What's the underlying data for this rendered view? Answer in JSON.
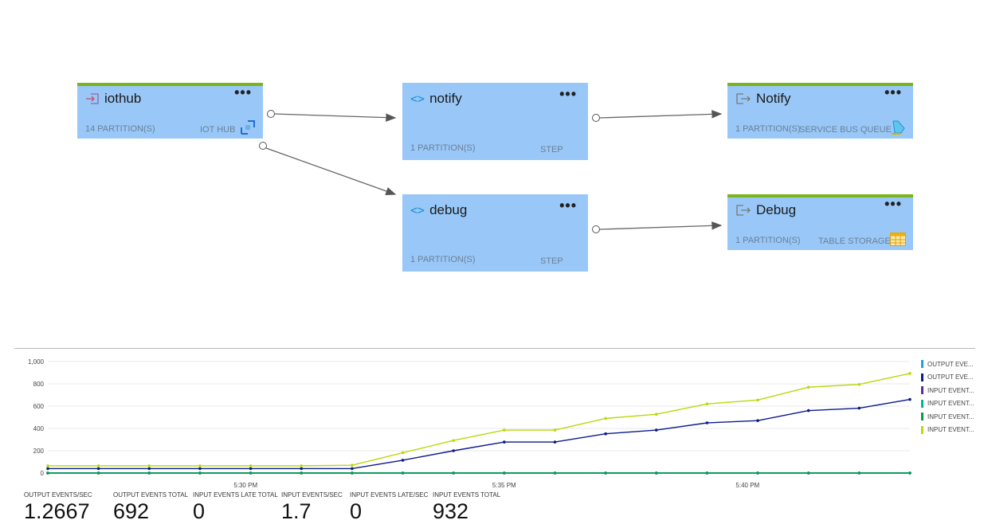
{
  "nodes": {
    "iothub": {
      "title": "iothub",
      "partitions": "14 PARTITION(S)",
      "kind": "IOT HUB",
      "more": "•••"
    },
    "notify_step": {
      "title": "notify",
      "partitions": "1 PARTITION(S)",
      "kind": "STEP",
      "more": "•••"
    },
    "debug_step": {
      "title": "debug",
      "partitions": "1 PARTITION(S)",
      "kind": "STEP",
      "more": "•••"
    },
    "notify_out": {
      "title": "Notify",
      "partitions": "1 PARTITION(S)",
      "kind": "SERVICE BUS QUEUE",
      "more": "•••"
    },
    "debug_out": {
      "title": "Debug",
      "partitions": "1 PARTITION(S)",
      "kind": "TABLE STORAGE",
      "more": "•••"
    }
  },
  "icons": {
    "input": "input-arrow-icon",
    "step": "code-brackets-icon",
    "output": "output-arrow-icon",
    "iothub": "iot-hub-icon",
    "servicebus": "service-bus-queue-icon",
    "table": "table-storage-icon"
  },
  "colors": {
    "node_fill": "#99c8f8",
    "io_accent": "#7ab51d"
  },
  "chart_data": {
    "type": "line",
    "x": [
      "",
      "",
      "",
      "",
      "",
      "",
      "",
      "",
      "",
      "",
      "",
      "",
      "",
      "",
      "",
      "",
      "",
      ""
    ],
    "xticks": [
      "5:30 PM",
      "5:35 PM",
      "5:40 PM"
    ],
    "yticks": [
      "0",
      "200",
      "400",
      "600",
      "800",
      "1,000"
    ],
    "ylim": [
      0,
      1000
    ],
    "grid": true,
    "legend_position": "right",
    "series": [
      {
        "name": "OUTPUT EVE...",
        "color": "#1ba1e2",
        "values": [
          0,
          0,
          0,
          0,
          0,
          0,
          0,
          0,
          0,
          0,
          0,
          0,
          0,
          0,
          0,
          0,
          0,
          0
        ]
      },
      {
        "name": "OUTPUT EVE...",
        "color": "#0c1a8a",
        "values": [
          40,
          40,
          40,
          40,
          40,
          40,
          40,
          115,
          200,
          278,
          278,
          352,
          385,
          450,
          470,
          560,
          582,
          660
        ]
      },
      {
        "name": "INPUT EVENT...",
        "color": "#5c2d91",
        "values": [
          0,
          0,
          0,
          0,
          0,
          0,
          0,
          0,
          0,
          0,
          0,
          0,
          0,
          0,
          0,
          0,
          0,
          0
        ]
      },
      {
        "name": "INPUT EVENT...",
        "color": "#00b294",
        "values": [
          0,
          0,
          0,
          0,
          0,
          0,
          0,
          0,
          0,
          0,
          0,
          0,
          0,
          0,
          0,
          0,
          0,
          0
        ]
      },
      {
        "name": "INPUT EVENT...",
        "color": "#009e49",
        "values": [
          0,
          0,
          0,
          0,
          0,
          0,
          0,
          0,
          0,
          0,
          0,
          0,
          0,
          0,
          0,
          0,
          0,
          0
        ]
      },
      {
        "name": "INPUT EVENT...",
        "color": "#bad80a",
        "values": [
          65,
          65,
          65,
          65,
          65,
          65,
          70,
          182,
          292,
          385,
          385,
          490,
          527,
          620,
          655,
          770,
          795,
          893
        ]
      }
    ]
  },
  "stats": [
    {
      "label": "OUTPUT EVENTS/SEC",
      "value": "1.2667"
    },
    {
      "label": "OUTPUT EVENTS TOTAL",
      "value": "692"
    },
    {
      "label": "INPUT EVENTS LATE TOTAL",
      "value": "0"
    },
    {
      "label": "INPUT EVENTS/SEC",
      "value": "1.7"
    },
    {
      "label": "INPUT EVENTS LATE/SEC",
      "value": "0"
    },
    {
      "label": "INPUT EVENTS TOTAL",
      "value": "932"
    }
  ]
}
